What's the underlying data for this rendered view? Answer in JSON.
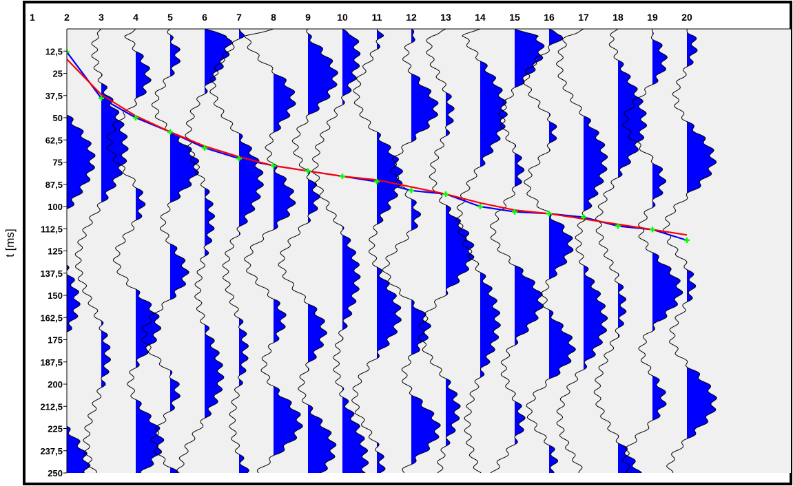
{
  "chart_data": {
    "type": "seismogram",
    "title": "",
    "xlabel": "",
    "ylabel": "t [ms]",
    "x_ticks": [
      1,
      2,
      3,
      4,
      5,
      6,
      7,
      8,
      9,
      10,
      11,
      12,
      13,
      14,
      15,
      16,
      17,
      18,
      19,
      20
    ],
    "y_ticks": [
      "12,5",
      "25",
      "37,5",
      "50",
      "62,5",
      "75",
      "87,5",
      "100",
      "112,5",
      "125",
      "137,5",
      "150",
      "162,5",
      "175",
      "187,5",
      "200",
      "212,5",
      "225",
      "237,5",
      "250"
    ],
    "ylim": [
      0,
      250
    ],
    "traces": 20,
    "fill_color": "#0000ff",
    "background_color": "#f0f0f0",
    "series": [
      {
        "color": "#0000ff",
        "x": [
          1,
          2,
          3,
          4,
          5,
          6,
          7,
          8,
          9,
          10,
          11,
          12,
          13,
          14,
          15,
          16,
          17,
          18,
          19,
          20
        ],
        "y": [
          1,
          13,
          39,
          50,
          58,
          67,
          73,
          77,
          80,
          83,
          86,
          91,
          93,
          100,
          103,
          104,
          106,
          111,
          113,
          119
        ]
      },
      {
        "color": "#ff0000",
        "x": [
          1,
          2,
          3,
          4,
          5,
          6,
          7,
          8,
          9,
          10,
          11,
          12,
          13,
          14,
          15,
          16,
          17,
          18,
          19,
          20
        ],
        "y": [
          1,
          17,
          37,
          49,
          58,
          66,
          72,
          77,
          80,
          83,
          85,
          89,
          93,
          98,
          102,
          104,
          107,
          110,
          113,
          116
        ]
      }
    ],
    "pick_color": "#00ff00"
  }
}
